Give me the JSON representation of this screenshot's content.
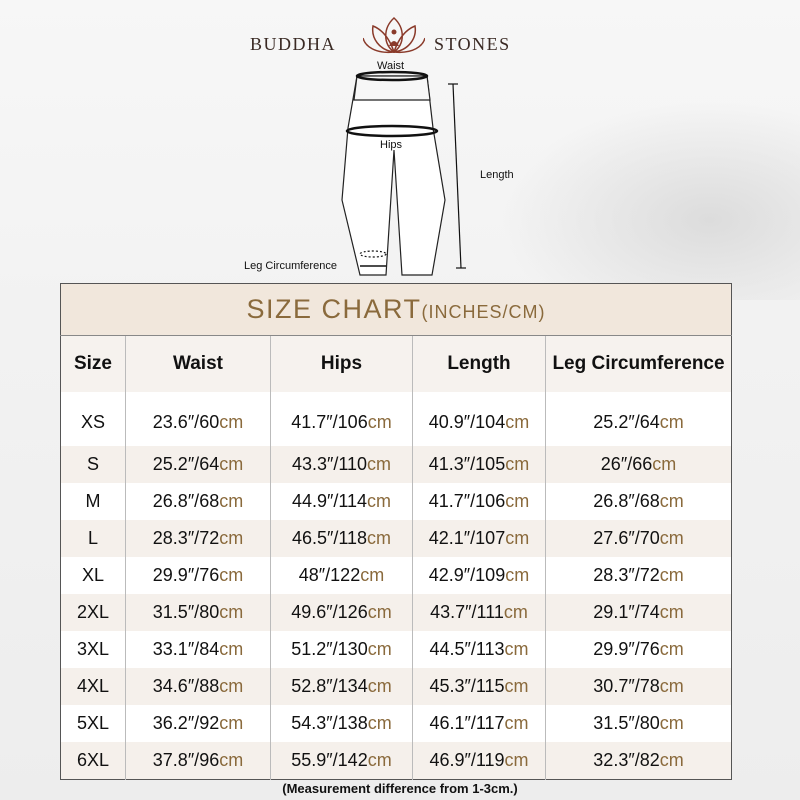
{
  "brand": {
    "left": "BUDDHA",
    "right": "STONES",
    "accent": "#8a3a2a"
  },
  "diagram": {
    "labels": {
      "waist": "Waist",
      "hips": "Hips",
      "length": "Length",
      "leg": "Leg Circumference"
    }
  },
  "chart": {
    "title": "SIZE CHART",
    "subtitle": "(INCHES/CM)",
    "headers": [
      "Size",
      "Waist",
      "Hips",
      "Length",
      "Leg Circumference"
    ],
    "unit": "cm",
    "rows": [
      {
        "size": "XS",
        "waist": "23.6″/60",
        "hips": "41.7″/106",
        "length": "40.9″/104",
        "leg": "25.2″/64"
      },
      {
        "size": "S",
        "waist": "25.2″/64",
        "hips": "43.3″/110",
        "length": "41.3″/105",
        "leg": "26″/66"
      },
      {
        "size": "M",
        "waist": "26.8″/68",
        "hips": "44.9″/114",
        "length": "41.7″/106",
        "leg": "26.8″/68"
      },
      {
        "size": "L",
        "waist": "28.3″/72",
        "hips": "46.5″/118",
        "length": "42.1″/107",
        "leg": "27.6″/70"
      },
      {
        "size": "XL",
        "waist": "29.9″/76",
        "hips": "48″/122",
        "length": "42.9″/109",
        "leg": "28.3″/72"
      },
      {
        "size": "2XL",
        "waist": "31.5″/80",
        "hips": "49.6″/126",
        "length": "43.7″/111",
        "leg": "29.1″/74"
      },
      {
        "size": "3XL",
        "waist": "33.1″/84",
        "hips": "51.2″/130",
        "length": "44.5″/113",
        "leg": "29.9″/76"
      },
      {
        "size": "4XL",
        "waist": "34.6″/88",
        "hips": "52.8″/134",
        "length": "45.3″/115",
        "leg": "30.7″/78"
      },
      {
        "size": "5XL",
        "waist": "36.2″/92",
        "hips": "54.3″/138",
        "length": "46.1″/117",
        "leg": "31.5″/80"
      },
      {
        "size": "6XL",
        "waist": "37.8″/96",
        "hips": "55.9″/142",
        "length": "46.9″/119",
        "leg": "32.3″/82"
      }
    ]
  },
  "note": "(Measurement difference from 1-3cm.)",
  "colors": {
    "title_bg": "#f1e7dc",
    "accent": "#8a6a3c",
    "alt_row": "#f5f0eb"
  }
}
